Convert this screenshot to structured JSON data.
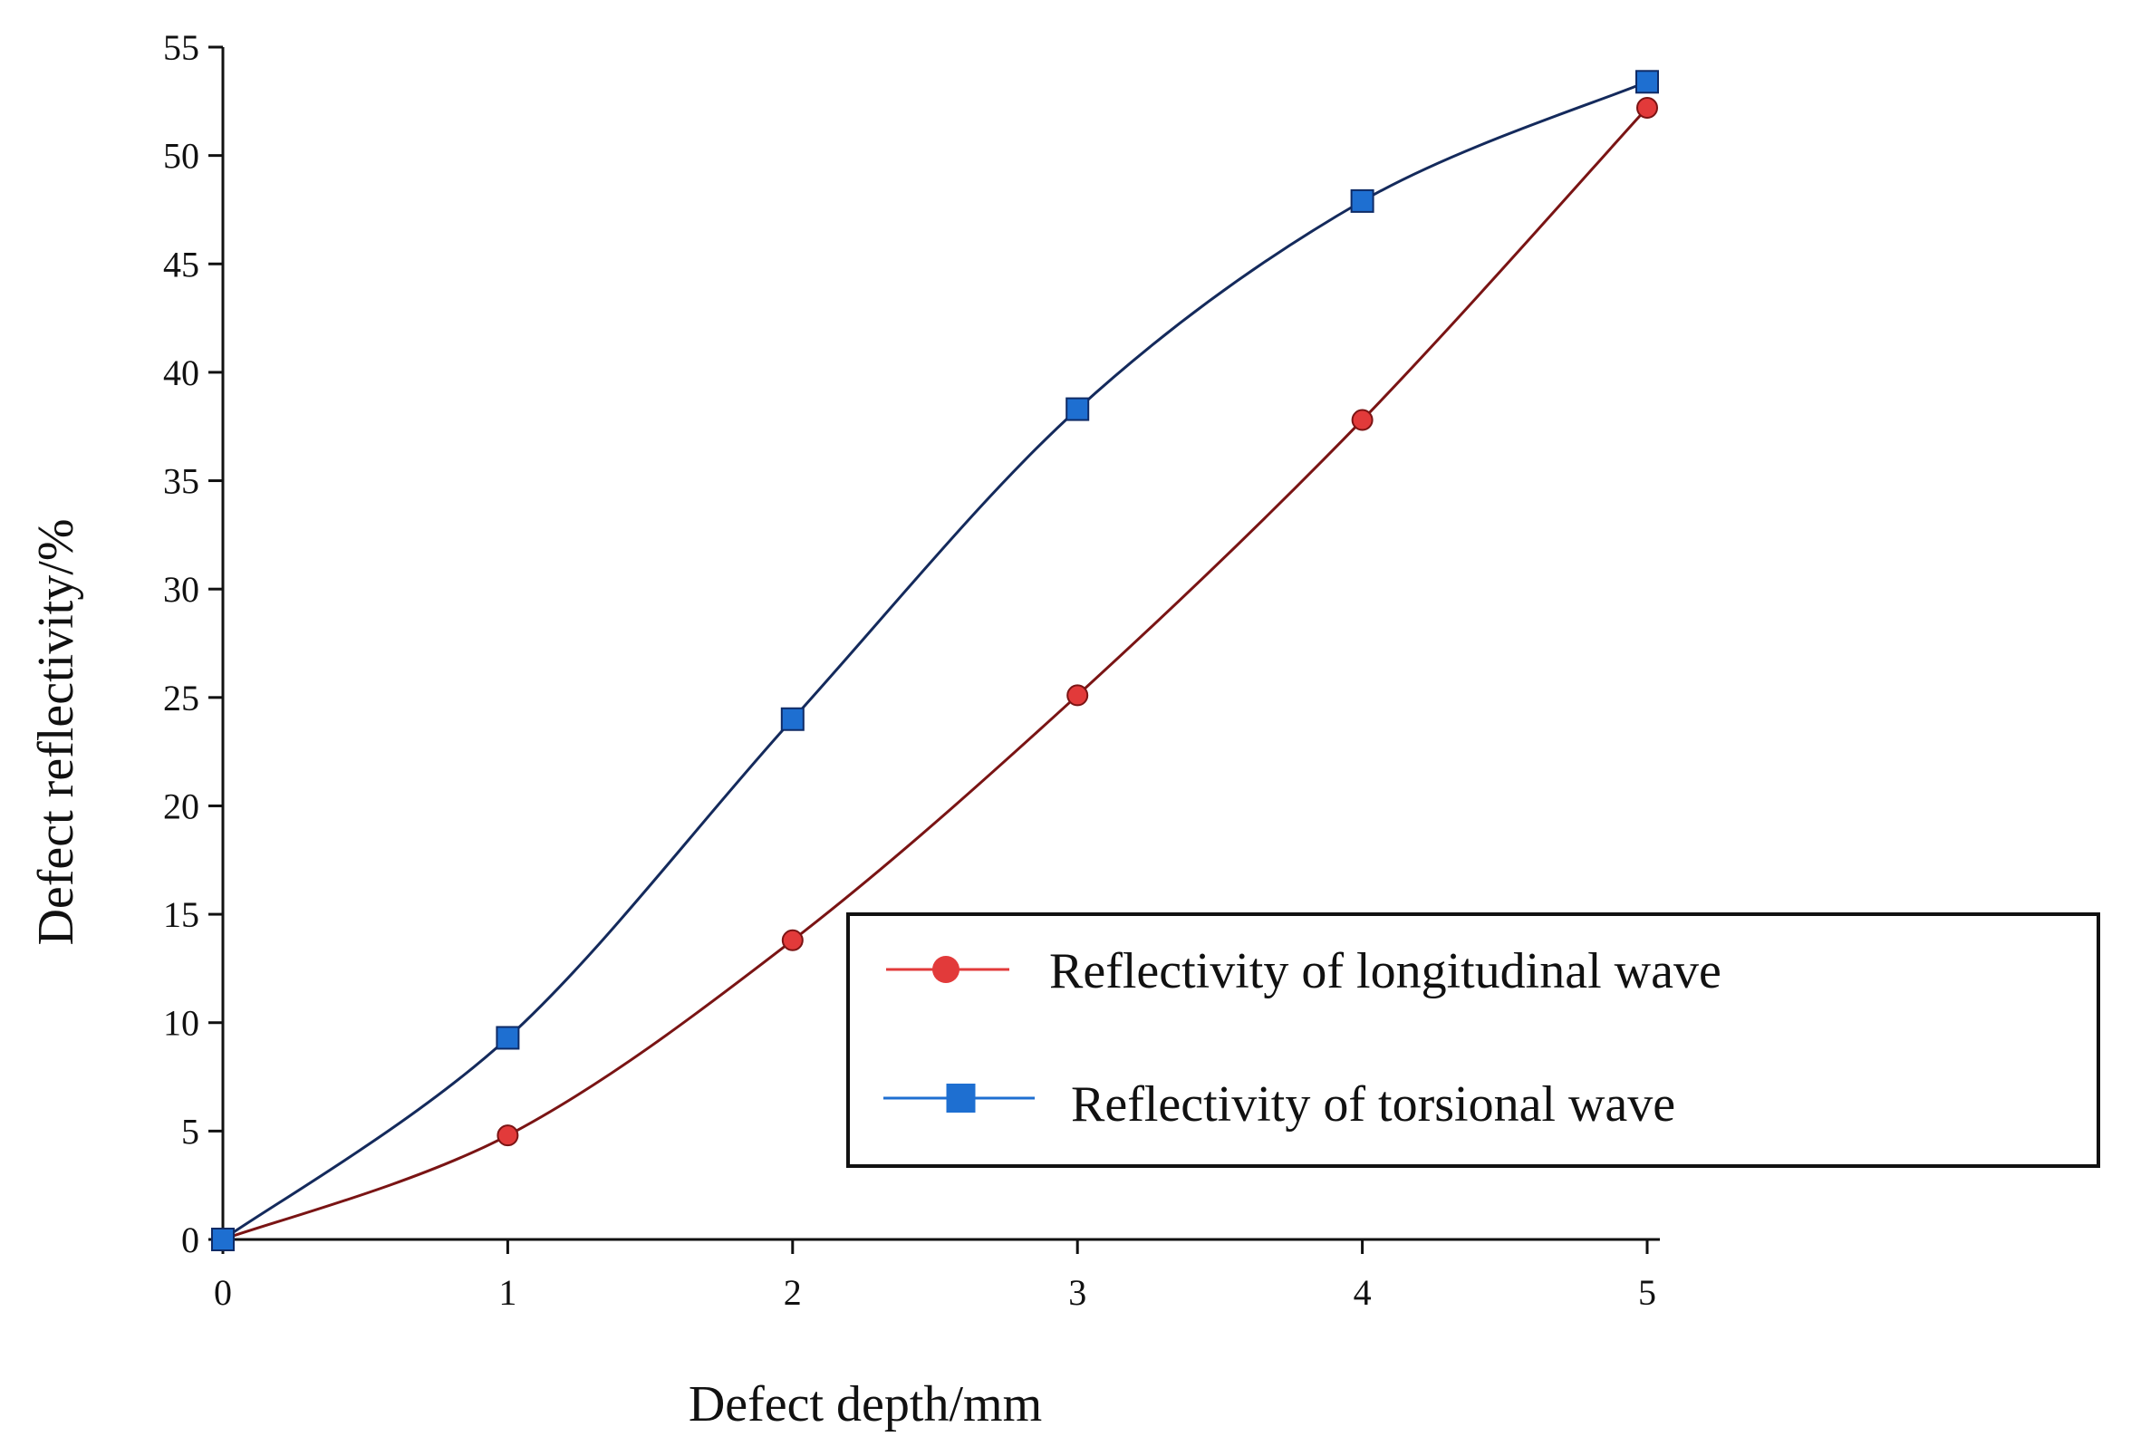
{
  "chart_data": {
    "type": "line",
    "title": "",
    "xlabel": "Defect depth/mm",
    "ylabel": "Defect reflectivity/%",
    "xlim": [
      0,
      5
    ],
    "ylim": [
      0,
      55
    ],
    "x_ticks": [
      "0",
      "1",
      "2",
      "3",
      "4",
      "5"
    ],
    "y_ticks": [
      "0",
      "5",
      "10",
      "15",
      "20",
      "25",
      "30",
      "35",
      "40",
      "45",
      "50",
      "55"
    ],
    "grid": false,
    "legend_position": "lower-right",
    "series": [
      {
        "name": "Reflectivity of longitudinal wave",
        "marker": "circle",
        "color": "#e23a3a",
        "line_color": "#7a1414",
        "x": [
          0,
          1,
          2,
          3,
          4,
          5
        ],
        "values": [
          0,
          4.8,
          13.8,
          25.1,
          37.8,
          52.2
        ]
      },
      {
        "name": "Reflectivity of torsional wave",
        "marker": "square",
        "color": "#1e6fd1",
        "line_color": "#142a5c",
        "x": [
          0,
          1,
          2,
          3,
          4,
          5
        ],
        "values": [
          0,
          9.3,
          24.0,
          38.3,
          47.9,
          53.4
        ]
      }
    ]
  }
}
